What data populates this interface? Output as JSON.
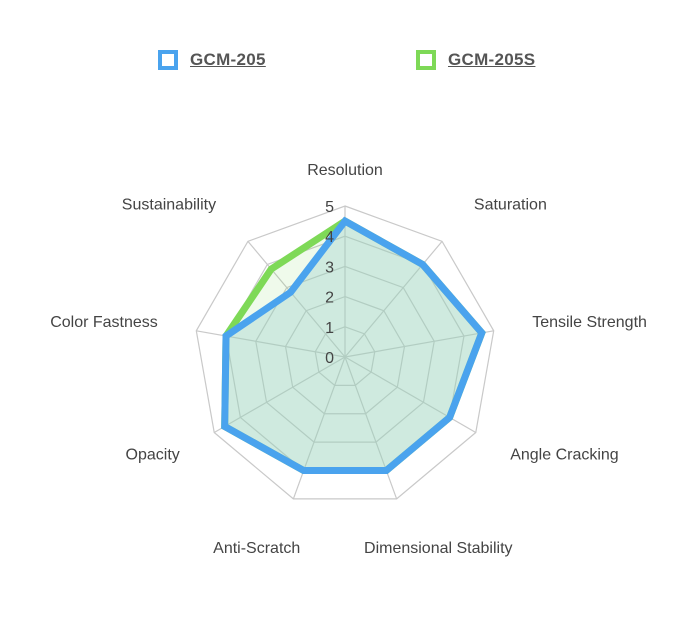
{
  "chart_data": {
    "type": "radar",
    "categories": [
      "Resolution",
      "Saturation",
      "Tensile Strength",
      "Angle Cracking",
      "Dimensional Stability",
      "Anti-Scratch",
      "Opacity",
      "Color Fastness",
      "Sustainability"
    ],
    "series": [
      {
        "name": "GCM-205S",
        "color": "#7ed957",
        "fill": "rgba(126,217,87,0.12)",
        "values": [
          4.5,
          4.0,
          4.6,
          4.0,
          4.0,
          4.0,
          4.6,
          4.0,
          3.8
        ]
      },
      {
        "name": "GCM-205",
        "color": "#4aa3ee",
        "fill": "rgba(160,210,205,0.40)",
        "values": [
          4.5,
          4.0,
          4.6,
          4.0,
          4.0,
          4.0,
          4.6,
          4.0,
          2.8
        ]
      }
    ],
    "rlim": [
      0,
      5
    ],
    "ticks": [
      "0",
      "1",
      "2",
      "3",
      "4",
      "5"
    ],
    "grid": true,
    "legend_position": "top"
  },
  "legend": {
    "items": [
      {
        "label": "GCM-205",
        "color": "#4aa3ee"
      },
      {
        "label": "GCM-205S",
        "color": "#7ed957"
      }
    ]
  }
}
